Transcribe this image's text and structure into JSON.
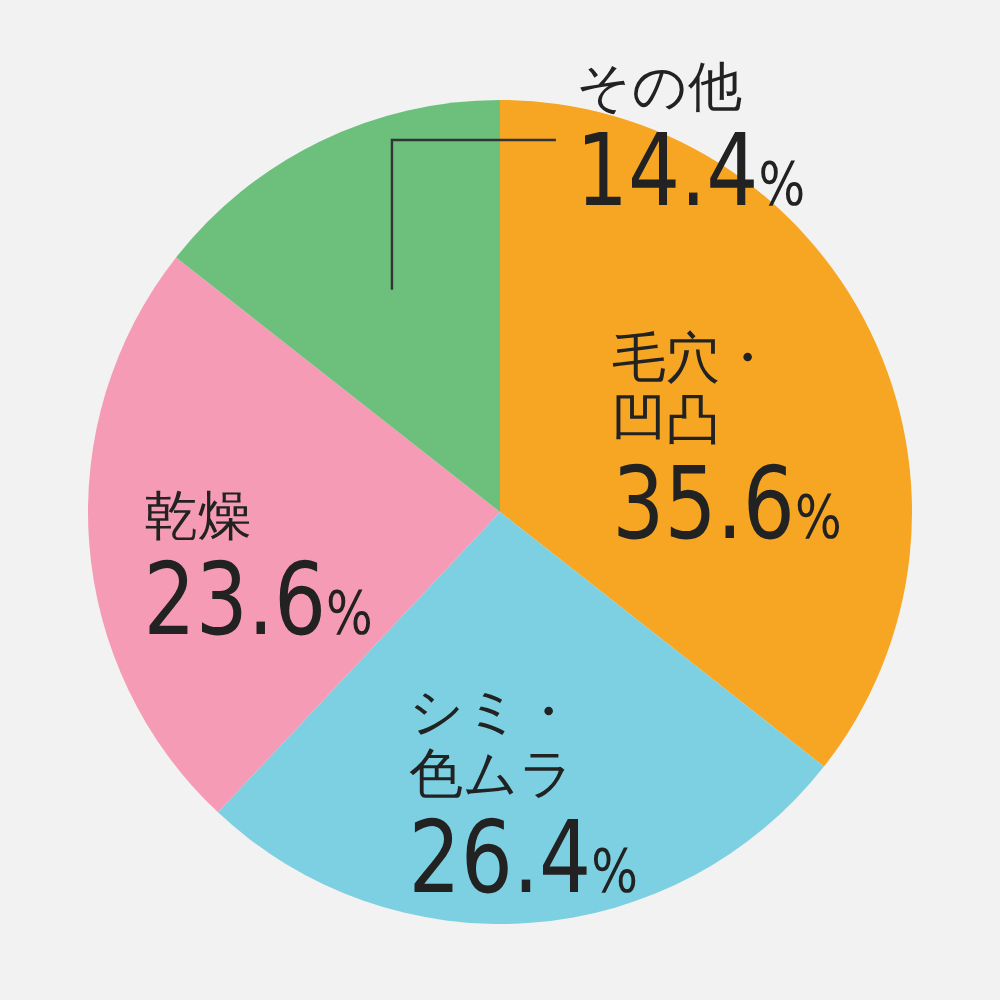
{
  "chart_data": {
    "type": "pie",
    "categories": [
      "毛穴・凹凸",
      "シミ・色ムラ",
      "乾燥",
      "その他"
    ],
    "values": [
      35.6,
      26.4,
      23.6,
      14.4
    ],
    "colors": [
      "#f6a623",
      "#7dd0e2",
      "#f59bb5",
      "#6cc07c"
    ],
    "value_labels": [
      "35.6%",
      "26.4%",
      "23.6%",
      "14.4%"
    ]
  }
}
